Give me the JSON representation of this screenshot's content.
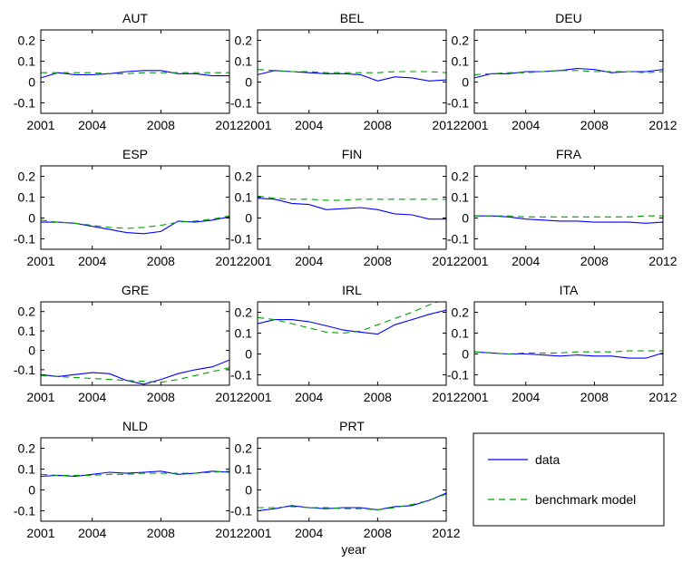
{
  "colors": {
    "data": "#0000ff",
    "benchmark": "#00a000",
    "axes": "#000000"
  },
  "xlabel": "year",
  "legend": {
    "data_label": "data",
    "model_label": "benchmark model"
  },
  "chart_data": [
    {
      "type": "line",
      "title": "AUT",
      "x": [
        2001,
        2002,
        2003,
        2004,
        2005,
        2006,
        2007,
        2008,
        2009,
        2010,
        2011,
        2012
      ],
      "x_ticks": [
        "2001",
        "2004",
        "2008",
        "2012"
      ],
      "y_ticks": [
        "0.2",
        "0.1",
        "0",
        "-0.1"
      ],
      "ylim": [
        -0.15,
        0.25
      ],
      "series": [
        {
          "name": "data",
          "values": [
            0.02,
            0.045,
            0.035,
            0.035,
            0.04,
            0.05,
            0.055,
            0.055,
            0.04,
            0.04,
            0.03,
            0.03
          ]
        },
        {
          "name": "benchmark model",
          "values": [
            0.045,
            0.045,
            0.045,
            0.045,
            0.04,
            0.04,
            0.045,
            0.045,
            0.045,
            0.045,
            0.045,
            0.045
          ]
        }
      ]
    },
    {
      "type": "line",
      "title": "BEL",
      "x": [
        2001,
        2002,
        2003,
        2004,
        2005,
        2006,
        2007,
        2008,
        2009,
        2010,
        2011,
        2012
      ],
      "x_ticks": [
        "2001",
        "2004",
        "2008",
        "2012"
      ],
      "y_ticks": [
        "0.2",
        "0.1",
        "0",
        "-0.1"
      ],
      "ylim": [
        -0.15,
        0.25
      ],
      "series": [
        {
          "name": "data",
          "values": [
            0.035,
            0.055,
            0.05,
            0.045,
            0.04,
            0.04,
            0.035,
            0.005,
            0.025,
            0.02,
            0.005,
            0.01
          ]
        },
        {
          "name": "benchmark model",
          "values": [
            0.06,
            0.055,
            0.05,
            0.05,
            0.045,
            0.045,
            0.045,
            0.045,
            0.05,
            0.05,
            0.05,
            0.045
          ]
        }
      ]
    },
    {
      "type": "line",
      "title": "DEU",
      "x": [
        2001,
        2002,
        2003,
        2004,
        2005,
        2006,
        2007,
        2008,
        2009,
        2010,
        2011,
        2012
      ],
      "x_ticks": [
        "2001",
        "2004",
        "2008",
        "2012"
      ],
      "y_ticks": [
        "0.2",
        "0.1",
        "0",
        "-0.1"
      ],
      "ylim": [
        -0.15,
        0.25
      ],
      "series": [
        {
          "name": "data",
          "values": [
            0.02,
            0.04,
            0.04,
            0.05,
            0.05,
            0.055,
            0.065,
            0.06,
            0.045,
            0.05,
            0.05,
            0.06
          ]
        },
        {
          "name": "benchmark model",
          "values": [
            0.035,
            0.04,
            0.045,
            0.045,
            0.05,
            0.055,
            0.055,
            0.05,
            0.05,
            0.05,
            0.045,
            0.05
          ]
        }
      ]
    },
    {
      "type": "line",
      "title": "ESP",
      "x": [
        2001,
        2002,
        2003,
        2004,
        2005,
        2006,
        2007,
        2008,
        2009,
        2010,
        2011,
        2012
      ],
      "x_ticks": [
        "2001",
        "2004",
        "2008",
        "2012"
      ],
      "y_ticks": [
        "0.2",
        "0.1",
        "0",
        "-0.1"
      ],
      "ylim": [
        -0.15,
        0.25
      ],
      "series": [
        {
          "name": "data",
          "values": [
            -0.02,
            -0.02,
            -0.025,
            -0.04,
            -0.055,
            -0.07,
            -0.075,
            -0.065,
            -0.015,
            -0.02,
            -0.01,
            0.005
          ]
        },
        {
          "name": "benchmark model",
          "values": [
            -0.01,
            -0.02,
            -0.025,
            -0.035,
            -0.045,
            -0.05,
            -0.045,
            -0.035,
            -0.02,
            -0.015,
            -0.005,
            0.01
          ]
        }
      ]
    },
    {
      "type": "line",
      "title": "FIN",
      "x": [
        2001,
        2002,
        2003,
        2004,
        2005,
        2006,
        2007,
        2008,
        2009,
        2010,
        2011,
        2012
      ],
      "x_ticks": [
        "2001",
        "2004",
        "2008",
        "2012"
      ],
      "y_ticks": [
        "0.2",
        "0.1",
        "0",
        "-0.1"
      ],
      "ylim": [
        -0.15,
        0.25
      ],
      "series": [
        {
          "name": "data",
          "values": [
            0.095,
            0.09,
            0.07,
            0.065,
            0.04,
            0.045,
            0.05,
            0.04,
            0.02,
            0.015,
            -0.005,
            -0.005
          ]
        },
        {
          "name": "benchmark model",
          "values": [
            0.105,
            0.095,
            0.09,
            0.09,
            0.085,
            0.085,
            0.09,
            0.09,
            0.09,
            0.09,
            0.09,
            0.09
          ]
        }
      ]
    },
    {
      "type": "line",
      "title": "FRA",
      "x": [
        2001,
        2002,
        2003,
        2004,
        2005,
        2006,
        2007,
        2008,
        2009,
        2010,
        2011,
        2012
      ],
      "x_ticks": [
        "2001",
        "2004",
        "2008",
        "2012"
      ],
      "y_ticks": [
        "0.2",
        "0.1",
        "0",
        "-0.1"
      ],
      "ylim": [
        -0.15,
        0.25
      ],
      "series": [
        {
          "name": "data",
          "values": [
            0.01,
            0.01,
            0.005,
            -0.005,
            -0.01,
            -0.015,
            -0.015,
            -0.02,
            -0.02,
            -0.02,
            -0.025,
            -0.02
          ]
        },
        {
          "name": "benchmark model",
          "values": [
            0.01,
            0.01,
            0.01,
            0.005,
            0.005,
            0.005,
            0.005,
            0.005,
            0.005,
            0.005,
            0.01,
            0.01
          ]
        }
      ]
    },
    {
      "type": "line",
      "title": "GRE",
      "x": [
        2001,
        2002,
        2003,
        2004,
        2005,
        2006,
        2007,
        2008,
        2009,
        2010,
        2011,
        2012
      ],
      "x_ticks": [
        "2001",
        "2004",
        "2008",
        "2012"
      ],
      "y_ticks": [
        "0.2",
        "0.1",
        "0",
        "-0.1"
      ],
      "ylim": [
        -0.18,
        0.25
      ],
      "series": [
        {
          "name": "data",
          "values": [
            -0.125,
            -0.135,
            -0.125,
            -0.115,
            -0.12,
            -0.155,
            -0.175,
            -0.15,
            -0.12,
            -0.1,
            -0.085,
            -0.05
          ]
        },
        {
          "name": "benchmark model",
          "values": [
            -0.13,
            -0.135,
            -0.14,
            -0.145,
            -0.15,
            -0.155,
            -0.16,
            -0.165,
            -0.15,
            -0.13,
            -0.11,
            -0.09
          ]
        }
      ]
    },
    {
      "type": "line",
      "title": "IRL",
      "x": [
        2001,
        2002,
        2003,
        2004,
        2005,
        2006,
        2007,
        2008,
        2009,
        2010,
        2011,
        2012
      ],
      "x_ticks": [
        "2001",
        "2004",
        "2008",
        "2012"
      ],
      "y_ticks": [
        "0.2",
        "0.1",
        "0",
        "-0.1"
      ],
      "ylim": [
        -0.15,
        0.25
      ],
      "series": [
        {
          "name": "data",
          "values": [
            0.145,
            0.165,
            0.165,
            0.155,
            0.135,
            0.115,
            0.105,
            0.095,
            0.14,
            0.165,
            0.19,
            0.21
          ]
        },
        {
          "name": "benchmark model",
          "values": [
            0.175,
            0.165,
            0.145,
            0.125,
            0.105,
            0.1,
            0.11,
            0.14,
            0.17,
            0.2,
            0.235,
            0.265
          ]
        }
      ]
    },
    {
      "type": "line",
      "title": "ITA",
      "x": [
        2001,
        2002,
        2003,
        2004,
        2005,
        2006,
        2007,
        2008,
        2009,
        2010,
        2011,
        2012
      ],
      "x_ticks": [
        "2001",
        "2004",
        "2008",
        "2012"
      ],
      "y_ticks": [
        "0.2",
        "0.1",
        "0",
        "-0.1"
      ],
      "ylim": [
        -0.15,
        0.25
      ],
      "series": [
        {
          "name": "data",
          "values": [
            0.01,
            0.005,
            0.0,
            0.0,
            -0.005,
            -0.01,
            -0.005,
            -0.01,
            -0.01,
            -0.02,
            -0.02,
            0.005
          ]
        },
        {
          "name": "benchmark model",
          "values": [
            0.01,
            0.005,
            0.0,
            0.005,
            0.005,
            0.005,
            0.01,
            0.01,
            0.01,
            0.015,
            0.015,
            0.015
          ]
        }
      ]
    },
    {
      "type": "line",
      "title": "NLD",
      "x": [
        2001,
        2002,
        2003,
        2004,
        2005,
        2006,
        2007,
        2008,
        2009,
        2010,
        2011,
        2012
      ],
      "x_ticks": [
        "2001",
        "2004",
        "2008",
        "2012"
      ],
      "y_ticks": [
        "0.2",
        "0.1",
        "0",
        "-0.1"
      ],
      "ylim": [
        -0.15,
        0.25
      ],
      "series": [
        {
          "name": "data",
          "values": [
            0.065,
            0.07,
            0.065,
            0.075,
            0.085,
            0.08,
            0.085,
            0.09,
            0.075,
            0.08,
            0.09,
            0.085
          ]
        },
        {
          "name": "benchmark model",
          "values": [
            0.075,
            0.07,
            0.07,
            0.07,
            0.075,
            0.075,
            0.08,
            0.08,
            0.08,
            0.08,
            0.085,
            0.09
          ]
        }
      ]
    },
    {
      "type": "line",
      "title": "PRT",
      "x": [
        2001,
        2002,
        2003,
        2004,
        2005,
        2006,
        2007,
        2008,
        2009,
        2010,
        2011,
        2012
      ],
      "x_ticks": [
        "2001",
        "2004",
        "2008",
        "2012"
      ],
      "y_ticks": [
        "0.2",
        "0.1",
        "0",
        "-0.1"
      ],
      "ylim": [
        -0.15,
        0.25
      ],
      "series": [
        {
          "name": "data",
          "values": [
            -0.1,
            -0.09,
            -0.075,
            -0.085,
            -0.09,
            -0.085,
            -0.085,
            -0.095,
            -0.08,
            -0.075,
            -0.05,
            -0.015
          ]
        },
        {
          "name": "benchmark model",
          "values": [
            -0.085,
            -0.085,
            -0.08,
            -0.085,
            -0.085,
            -0.09,
            -0.09,
            -0.095,
            -0.085,
            -0.07,
            -0.05,
            -0.02
          ]
        }
      ]
    }
  ]
}
